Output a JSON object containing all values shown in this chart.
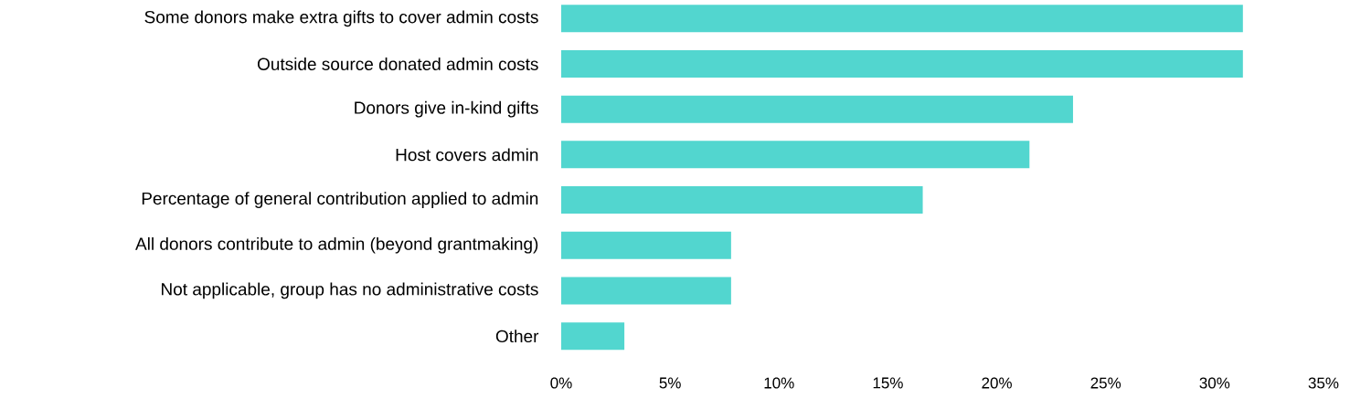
{
  "chart_data": {
    "type": "bar",
    "orientation": "horizontal",
    "categories": [
      "Some donors make extra gifts to cover admin costs",
      "Outside source donated admin costs",
      "Donors give in-kind gifts",
      "Host covers admin",
      "Percentage of general contribution applied to admin",
      "All donors contribute to admin (beyond grantmaking)",
      "Not applicable, group has no administrative costs",
      "Other"
    ],
    "values": [
      31.3,
      31.3,
      23.5,
      21.5,
      16.6,
      7.8,
      7.8,
      2.9
    ],
    "color": "#52d6cf",
    "xlim": [
      0,
      35
    ],
    "xticks": [
      {
        "value": 0,
        "label": "0%"
      },
      {
        "value": 5,
        "label": "5%"
      },
      {
        "value": 10,
        "label": "10%"
      },
      {
        "value": 15,
        "label": "15%"
      },
      {
        "value": 20,
        "label": "20%"
      },
      {
        "value": 25,
        "label": "25%"
      },
      {
        "value": 30,
        "label": "30%"
      },
      {
        "value": 35,
        "label": "35%"
      }
    ]
  }
}
